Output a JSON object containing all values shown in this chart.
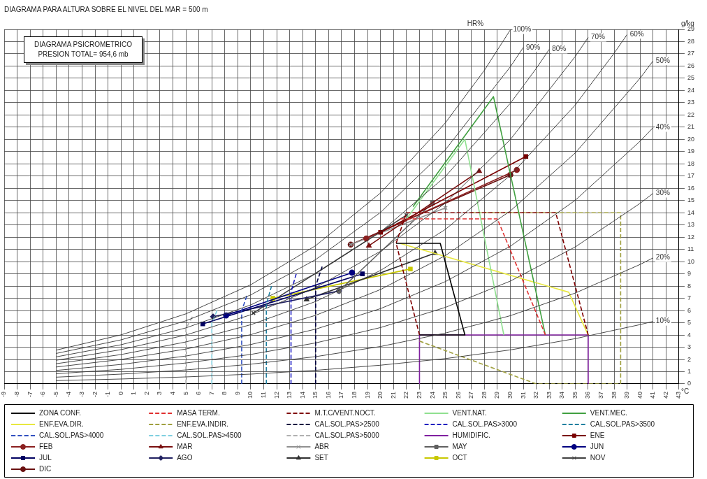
{
  "chart_data": {
    "type": "line",
    "title": "DIAGRAMA PARA ALTURA SOBRE EL NIVEL DEL MAR = 500 m",
    "subtitle": "DIAGRAMA PSICROMETRICO",
    "xlabel": "°C",
    "ylabel": "g/kg",
    "annotations": [
      "PRESION TOTAL= 954,6 mb",
      "HR%",
      {
        "text": "100%",
        "x": 30,
        "y": 28.96
      },
      {
        "text": "90%",
        "x": 31,
        "y": 27.52
      },
      {
        "text": "80%",
        "x": 33,
        "y": 27.37
      },
      {
        "text": "70%",
        "x": 36,
        "y": 28.34
      },
      {
        "text": "60%",
        "x": 39,
        "y": 28.58
      },
      {
        "text": "50%",
        "x": 41,
        "y": 26.42
      },
      {
        "text": "40%",
        "x": 41,
        "y": 20.96
      },
      {
        "text": "30%",
        "x": 41,
        "y": 15.59
      },
      {
        "text": "20%",
        "x": 41,
        "y": 10.31
      },
      {
        "text": "10%",
        "x": 41,
        "y": 5.11
      }
    ],
    "xlim": [
      -9,
      43
    ],
    "ylim": [
      0,
      29
    ],
    "xticks": [
      -9,
      -8,
      -7,
      -6,
      -5,
      -4,
      -3,
      -2,
      -1,
      0,
      1,
      2,
      3,
      4,
      5,
      6,
      7,
      8,
      9,
      10,
      11,
      12,
      13,
      14,
      15,
      16,
      17,
      18,
      19,
      20,
      21,
      22,
      23,
      24,
      25,
      26,
      27,
      28,
      29,
      30,
      31,
      32,
      33,
      34,
      35,
      36,
      37,
      38,
      39,
      40,
      41,
      42,
      43
    ],
    "yticks": [
      0,
      1,
      2,
      3,
      4,
      5,
      6,
      7,
      8,
      9,
      10,
      11,
      12,
      13,
      14,
      15,
      16,
      17,
      18,
      19,
      20,
      21,
      22,
      23,
      24,
      25,
      26,
      27,
      28,
      29
    ],
    "grid": true,
    "legend": "bottom",
    "marker": "none",
    "line_style": "solid",
    "series": [
      {
        "color": "#333333",
        "x": [
          -5,
          0,
          5,
          10,
          15,
          20,
          25,
          28,
          30
        ],
        "values": [
          2.76,
          4.01,
          5.73,
          8.11,
          11.31,
          15.62,
          21.36,
          25.65,
          28.96
        ]
      },
      {
        "color": "#333333",
        "x": [
          -5,
          0,
          5,
          10,
          15,
          20,
          25,
          30,
          31
        ],
        "values": [
          2.49,
          3.6,
          5.16,
          7.28,
          10.17,
          14.03,
          19.16,
          25.94,
          27.52
        ]
      },
      {
        "color": "#333333",
        "x": [
          -5,
          0,
          5,
          10,
          15,
          20,
          25,
          30,
          32,
          33
        ],
        "values": [
          2.21,
          3.2,
          4.58,
          6.46,
          9.02,
          12.43,
          16.97,
          22.95,
          25.81,
          27.37
        ]
      },
      {
        "color": "#333333",
        "x": [
          -5,
          0,
          5,
          10,
          15,
          20,
          25,
          30,
          35,
          36
        ],
        "values": [
          1.93,
          2.8,
          4,
          5.65,
          7.88,
          10.85,
          14.8,
          19.99,
          26.78,
          28.34
        ]
      },
      {
        "color": "#333333",
        "x": [
          -5,
          0,
          5,
          10,
          15,
          20,
          25,
          30,
          35,
          38,
          39
        ],
        "values": [
          1.65,
          2.4,
          3.43,
          4.84,
          6.74,
          9.28,
          12.64,
          17.06,
          22.81,
          27.05,
          28.58
        ]
      },
      {
        "color": "#333333",
        "x": [
          -5,
          0,
          5,
          10,
          15,
          20,
          25,
          30,
          35,
          40,
          41
        ],
        "values": [
          1.38,
          2,
          2.85,
          4.03,
          5.61,
          7.72,
          10.5,
          14.15,
          18.89,
          25.01,
          26.42
        ]
      },
      {
        "color": "#333333",
        "x": [
          -5,
          0,
          5,
          10,
          15,
          20,
          25,
          30,
          35,
          40,
          41
        ],
        "values": [
          1.1,
          1.59,
          2.28,
          3.22,
          4.48,
          6.16,
          8.37,
          11.26,
          15.02,
          19.85,
          20.96
        ]
      },
      {
        "color": "#333333",
        "x": [
          -5,
          0,
          5,
          10,
          15,
          20,
          25,
          30,
          35,
          40,
          41
        ],
        "values": [
          0.83,
          1.19,
          1.71,
          2.41,
          3.35,
          4.61,
          6.26,
          8.41,
          11.2,
          14.77,
          15.59
        ]
      },
      {
        "color": "#333333",
        "x": [
          -5,
          0,
          5,
          10,
          15,
          20,
          25,
          30,
          35,
          40,
          41
        ],
        "values": [
          0.55,
          0.8,
          1.14,
          1.61,
          2.23,
          3.06,
          4.16,
          5.58,
          7.43,
          9.77,
          10.31
        ]
      },
      {
        "color": "#333333",
        "x": [
          -5,
          0,
          5,
          10,
          15,
          20,
          25,
          30,
          35,
          40,
          41
        ],
        "values": [
          0.27,
          0.4,
          0.57,
          0.8,
          1.11,
          1.53,
          2.07,
          2.78,
          3.7,
          4.85,
          5.11
        ]
      },
      {
        "name": "ZONA CONF.",
        "color": "#000000",
        "x": [
          21.2,
          24.6,
          26.5,
          23
        ],
        "values": [
          11.5,
          11.5,
          4,
          4
        ]
      },
      {
        "name": "MASA TERM.",
        "color": "#e03030",
        "line_style": "dashed",
        "x": [
          21.5,
          29,
          32.7
        ],
        "values": [
          13.5,
          13.5,
          4
        ]
      },
      {
        "name": "M.T.C/VENT.NOCT.",
        "color": "#800000",
        "line_style": "dashed",
        "x": [
          23,
          21.2,
          22,
          33.5,
          36
        ],
        "values": [
          4,
          11.5,
          14,
          14,
          4
        ]
      },
      {
        "name": "VENT.NAT.",
        "color": "#90e090",
        "x": [
          22,
          26.5,
          29.5
        ],
        "values": [
          13.5,
          20,
          4
        ]
      },
      {
        "name": "VENT.MEC.",
        "color": "#40a040",
        "x": [
          22.5,
          28.7,
          32.7
        ],
        "values": [
          14.5,
          23.5,
          4
        ]
      },
      {
        "name": "ENF.EVA.DIR.",
        "color": "#e8e840",
        "x": [
          21.5,
          34.5,
          36
        ],
        "values": [
          11.5,
          7.5,
          4
        ]
      },
      {
        "name": "ENF.EVA.INDIR.",
        "color": "#a0a040",
        "line_style": "dashed",
        "x": [
          23,
          32,
          38.5,
          38.5,
          27
        ],
        "values": [
          3.5,
          0,
          0,
          14,
          14
        ]
      },
      {
        "name": "CAL.SOL.PAS>2500",
        "color": "#000040",
        "line_style": "dashed",
        "x": [
          15,
          15,
          15.5
        ],
        "values": [
          0,
          8,
          9.6
        ]
      },
      {
        "name": "CAL.SOL.PAS>3000",
        "color": "#2020c0",
        "line_style": "dashed",
        "x": [
          13.1,
          13.1,
          13.5
        ],
        "values": [
          0,
          7.5,
          9
        ]
      },
      {
        "name": "CAL.SOL.PAS>3500",
        "color": "#2080a0",
        "line_style": "dashed",
        "x": [
          11.2,
          11.2,
          11.6
        ],
        "values": [
          0,
          6.5,
          8
        ]
      },
      {
        "name": "CAL.SOL.PAS>4000",
        "color": "#3050c0",
        "line_style": "dashed",
        "x": [
          9.3,
          9.3,
          9.7
        ],
        "values": [
          0,
          6,
          7.2
        ]
      },
      {
        "name": "CAL.SOL.PAS>4500",
        "color": "#80d0e0",
        "line_style": "dashed",
        "x": [
          7,
          7,
          7.4
        ],
        "values": [
          0,
          5,
          6
        ]
      },
      {
        "name": "CAL.SOL.PAS>5000",
        "color": "#b0b0b0",
        "line_style": "dashed",
        "x": [
          5,
          5,
          5.5
        ],
        "values": [
          0,
          4.5,
          5.5
        ]
      },
      {
        "name": "HUMIDIFIC.",
        "color": "#8020a0",
        "x": [
          23,
          23,
          36,
          36
        ],
        "values": [
          0,
          4,
          4,
          0
        ]
      },
      {
        "name": "ENE",
        "color": "#7a0000",
        "marker": "square",
        "x": [
          20,
          31.2
        ],
        "values": [
          12.4,
          18.6
        ]
      },
      {
        "name": "FEB",
        "color": "#8b2020",
        "marker": "circle",
        "x": [
          18.9,
          30.5
        ],
        "values": [
          11.9,
          17.5
        ]
      },
      {
        "name": "MAR",
        "color": "#7a1010",
        "marker": "triangle",
        "x": [
          19.1,
          27.6
        ],
        "values": [
          11.3,
          17.4
        ]
      },
      {
        "name": "ABR",
        "color": "#909090",
        "marker": "cross",
        "x": [
          17.7,
          25
        ],
        "values": [
          11.4,
          14.4
        ]
      },
      {
        "name": "MAY",
        "color": "#606060",
        "marker": "square",
        "x": [
          16.8,
          24
        ],
        "values": [
          7.6,
          14.8
        ]
      },
      {
        "name": "JUN",
        "color": "#000080",
        "marker": "circle",
        "x": [
          8.1,
          17.8
        ],
        "values": [
          5.6,
          9.1
        ]
      },
      {
        "name": "JUL",
        "color": "#000060",
        "marker": "square",
        "x": [
          6.3,
          18.6
        ],
        "values": [
          4.9,
          9
        ]
      },
      {
        "name": "AGO",
        "color": "#202060",
        "marker": "diamond",
        "x": [
          7.1,
          16.8
        ],
        "values": [
          5.5,
          7.6
        ]
      },
      {
        "name": "SET",
        "color": "#303030",
        "marker": "triangle",
        "x": [
          14.3,
          24.2
        ],
        "values": [
          6.9,
          10.7
        ]
      },
      {
        "name": "OCT",
        "color": "#c8c800",
        "marker": "square",
        "x": [
          11.7,
          22.3
        ],
        "values": [
          7,
          9.4
        ]
      },
      {
        "name": "NOV",
        "color": "#404040",
        "marker": "cross",
        "x": [
          10.2,
          22
        ],
        "values": [
          5.8,
          13.8
        ]
      },
      {
        "name": "DIC",
        "color": "#6a1010",
        "marker": "circle",
        "x": [
          17.7,
          30
        ],
        "values": [
          11.4,
          17.1
        ]
      }
    ]
  }
}
